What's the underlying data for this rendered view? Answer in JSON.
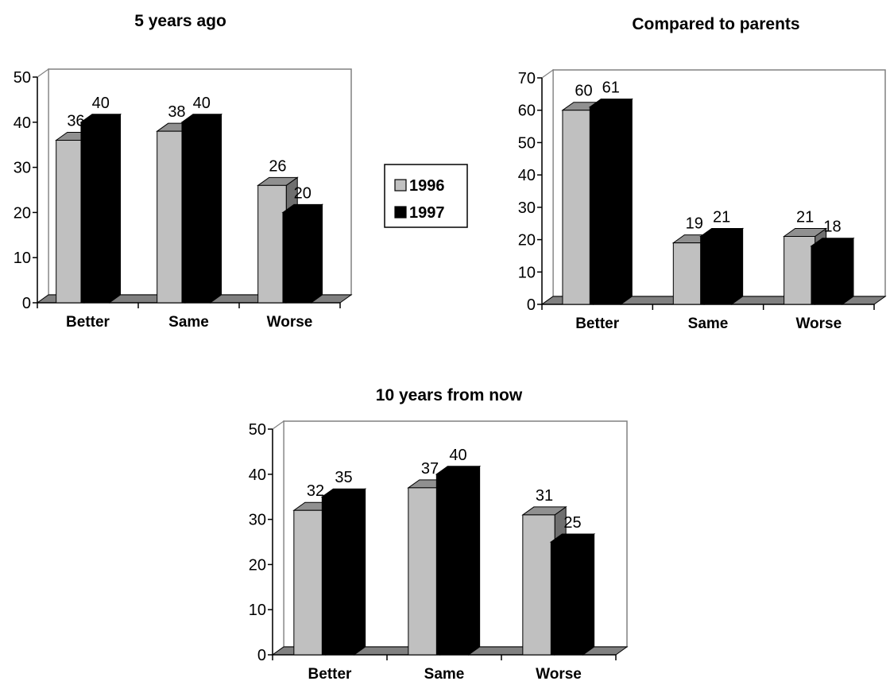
{
  "legend": {
    "items": [
      {
        "label": "1996",
        "color": "#c0c0c0"
      },
      {
        "label": "1997",
        "color": "#000000"
      }
    ]
  },
  "chart_data": [
    {
      "type": "bar",
      "title": "5 years ago",
      "categories": [
        "Better",
        "Same",
        "Worse"
      ],
      "series": [
        {
          "name": "1996",
          "values": [
            36,
            38,
            26
          ]
        },
        {
          "name": "1997",
          "values": [
            40,
            40,
            20
          ]
        }
      ],
      "ylim": [
        0,
        50
      ],
      "yticks": [
        0,
        10,
        20,
        30,
        40,
        50
      ],
      "grid": false,
      "legend": "right"
    },
    {
      "type": "bar",
      "title": "Compared to parents",
      "categories": [
        "Better",
        "Same",
        "Worse"
      ],
      "series": [
        {
          "name": "1996",
          "values": [
            60,
            19,
            21
          ]
        },
        {
          "name": "1997",
          "values": [
            61,
            21,
            18
          ]
        }
      ],
      "ylim": [
        0,
        70
      ],
      "yticks": [
        0,
        10,
        20,
        30,
        40,
        50,
        60,
        70
      ],
      "grid": false,
      "legend": "left"
    },
    {
      "type": "bar",
      "title": "10 years from now",
      "categories": [
        "Better",
        "Same",
        "Worse"
      ],
      "series": [
        {
          "name": "1996",
          "values": [
            32,
            37,
            31
          ]
        },
        {
          "name": "1997",
          "values": [
            35,
            40,
            25
          ]
        }
      ],
      "ylim": [
        0,
        50
      ],
      "yticks": [
        0,
        10,
        20,
        30,
        40,
        50
      ],
      "grid": false,
      "legend": "none"
    }
  ]
}
